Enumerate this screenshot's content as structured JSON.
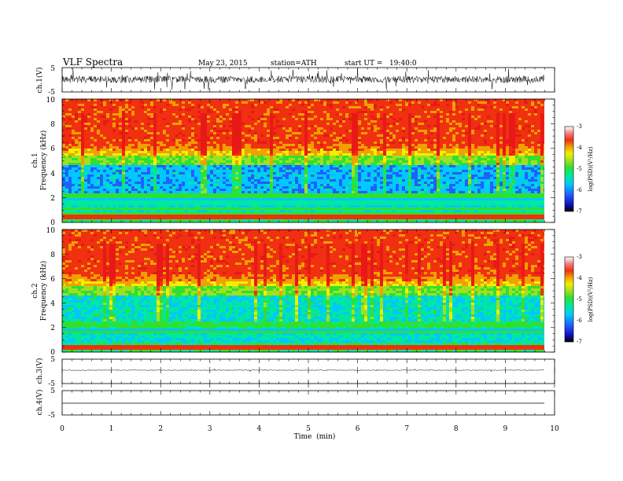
{
  "header": {
    "title": "VLF Spectra",
    "date": "May 23, 2015",
    "station": "station=ATH",
    "start": "start UT =   19:40:0"
  },
  "colors": {
    "colormap": [
      "#000000",
      "#1010c0",
      "#2060ff",
      "#00c8ff",
      "#00e8a0",
      "#30e030",
      "#a0e020",
      "#f0f000",
      "#f0a000",
      "#f03010",
      "#e81818",
      "#ffffff"
    ]
  },
  "chart_data": [
    {
      "type": "line",
      "name": "ch1-waveform",
      "ylabel": "ch.1(V)",
      "ylim": [
        -5,
        5
      ],
      "yticks": [
        "5",
        "-5"
      ],
      "x_range_min": [
        0,
        9.8
      ],
      "appearance": "dense noisy broadband signal centered near 0 V, amplitude about ±3 V"
    },
    {
      "type": "heatmap",
      "name": "ch1-spectrogram",
      "ylabel": "ch.1\nFrequency  (kHz)",
      "ylim": [
        0,
        10
      ],
      "yticks": [
        "0",
        "2",
        "4",
        "6",
        "8",
        "10"
      ],
      "x_range_min": [
        0,
        9.8
      ],
      "colorbar": {
        "label": "log(PSD)(V²/Hz)",
        "range": [
          -7,
          -3
        ],
        "ticks": [
          "-3",
          "-4",
          "-5",
          "-6",
          "-7"
        ]
      },
      "appearance": "high log PSD (red, about -3.5) from 6 to 10 kHz; green/cyan 1-6 kHz with blue minimum near 3-4 kHz; horizontal bands below 2.5 kHz; red line near 0.5 kHz; vertical yellow sferic streaks"
    },
    {
      "type": "heatmap",
      "name": "ch2-spectrogram",
      "ylabel": "ch.2\nFrequency  (kHz)",
      "ylim": [
        0,
        10
      ],
      "yticks": [
        "0",
        "2",
        "4",
        "6",
        "8",
        "10"
      ],
      "x_range_min": [
        0,
        9.8
      ],
      "colorbar": {
        "label": "log(PSD)(V²/Hz)",
        "range": [
          -7,
          -3
        ],
        "ticks": [
          "-3",
          "-4",
          "-5",
          "-6",
          "-7"
        ]
      },
      "appearance": "similar to ch.1 with slightly weaker minimum; red from 6 to 10 kHz, green below, horizontal bands below 3 kHz"
    },
    {
      "type": "line",
      "name": "ch3-waveform",
      "ylabel": "ch.3(V)",
      "ylim": [
        -5,
        5
      ],
      "yticks": [
        "5",
        "-5"
      ],
      "x_range_min": [
        0,
        9.8
      ],
      "appearance": "nearly flat line near 0 V with small noise"
    },
    {
      "type": "line",
      "name": "ch4-waveform",
      "ylabel": "ch.4(V)",
      "ylim": [
        -5,
        5
      ],
      "yticks": [
        "5",
        "-5"
      ],
      "x_range_min": [
        0,
        9.8
      ],
      "appearance": "flat line near 0 V"
    }
  ],
  "xaxis": {
    "label": "Time  (min)",
    "ticks": [
      "0",
      "1",
      "2",
      "3",
      "4",
      "5",
      "6",
      "7",
      "8",
      "9",
      "10"
    ],
    "range": [
      0,
      10
    ]
  }
}
